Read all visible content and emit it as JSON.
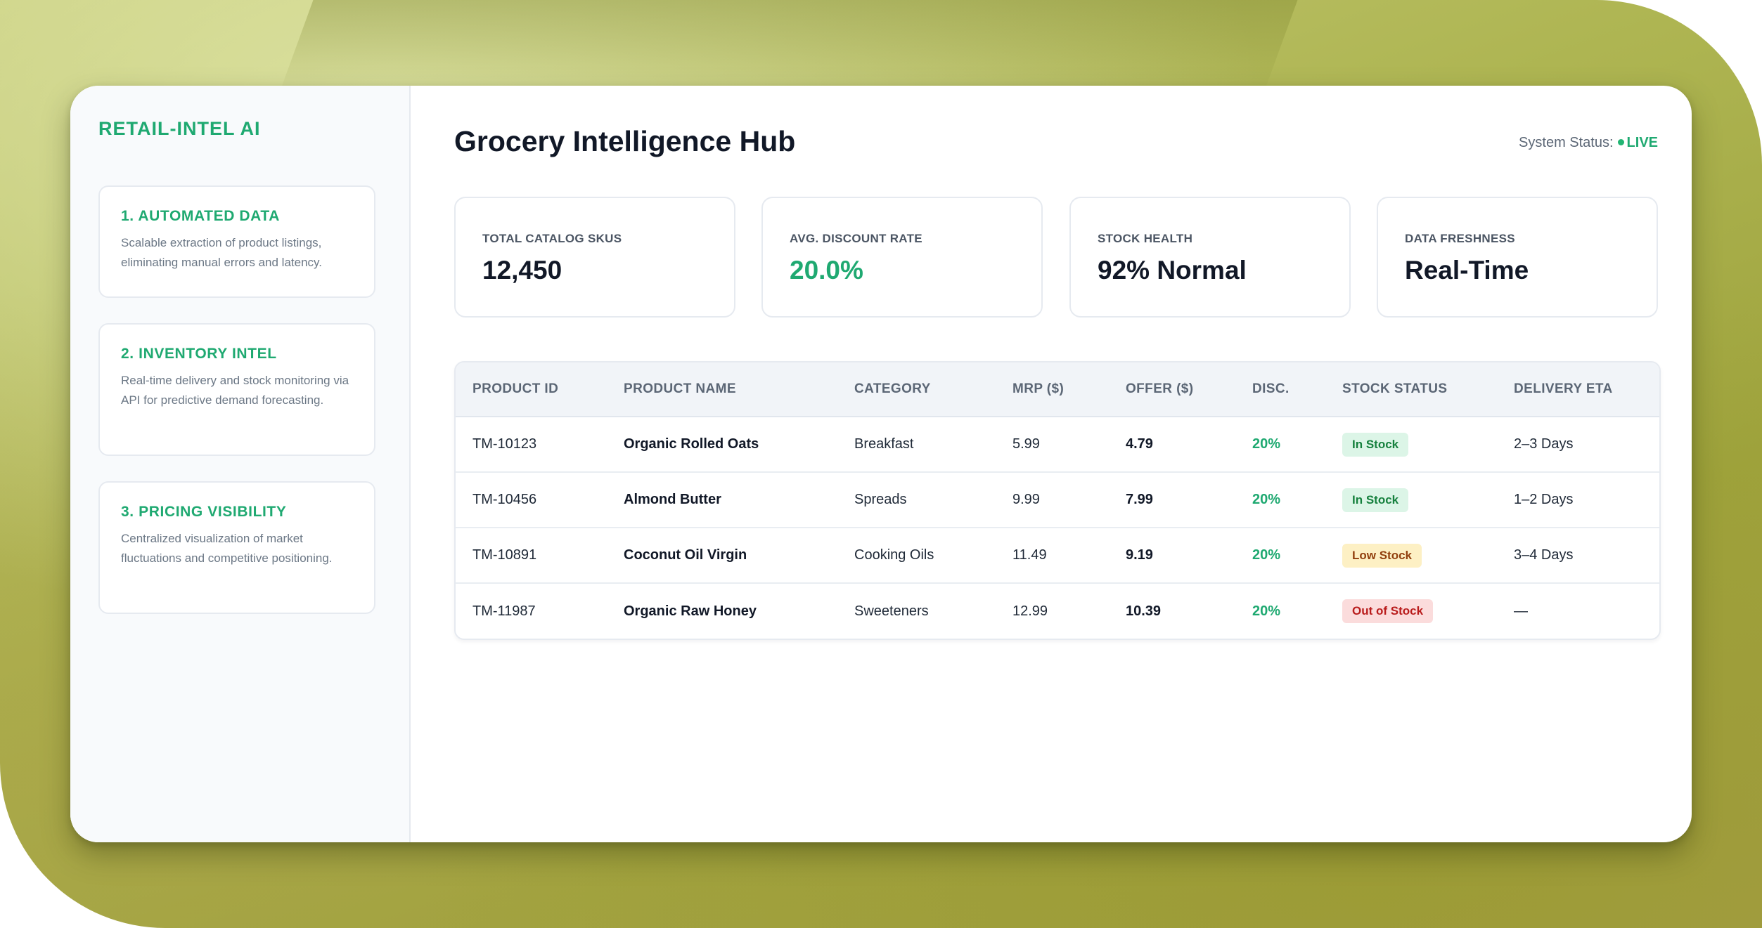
{
  "brand": "RETAIL-INTEL AI",
  "sidebar": {
    "cards": [
      {
        "title": "1. AUTOMATED DATA",
        "description": "Scalable extraction of product listings, eliminating manual errors and latency."
      },
      {
        "title": "2. INVENTORY INTEL",
        "description": "Real-time delivery and stock monitoring via API for predictive demand forecasting."
      },
      {
        "title": "3. PRICING VISIBILITY",
        "description": "Centralized visualization of market fluctuations and competitive positioning."
      }
    ]
  },
  "header": {
    "title": "Grocery Intelligence Hub",
    "status_label": "System Status:",
    "status_value": "LIVE"
  },
  "kpis": [
    {
      "label": "TOTAL CATALOG SKUS",
      "value": "12,450"
    },
    {
      "label": "AVG. DISCOUNT RATE",
      "value": "20.0%"
    },
    {
      "label": "STOCK HEALTH",
      "value": "92% Normal"
    },
    {
      "label": "DATA FRESHNESS",
      "value": "Real-Time"
    }
  ],
  "table": {
    "headers": [
      "PRODUCT ID",
      "PRODUCT NAME",
      "CATEGORY",
      "MRP ($)",
      "OFFER ($)",
      "DISC.",
      "STOCK STATUS",
      "DELIVERY ETA"
    ],
    "rows": [
      {
        "id": "TM-10123",
        "name": "Organic Rolled Oats",
        "category": "Breakfast",
        "mrp": "5.99",
        "offer": "4.79",
        "disc": "20%",
        "stock": "In Stock",
        "eta": "2–3 Days"
      },
      {
        "id": "TM-10456",
        "name": "Almond Butter",
        "category": "Spreads",
        "mrp": "9.99",
        "offer": "7.99",
        "disc": "20%",
        "stock": "In Stock",
        "eta": "1–2 Days"
      },
      {
        "id": "TM-10891",
        "name": "Coconut Oil Virgin",
        "category": "Cooking Oils",
        "mrp": "11.49",
        "offer": "9.19",
        "disc": "20%",
        "stock": "Low Stock",
        "eta": "3–4 Days"
      },
      {
        "id": "TM-11987",
        "name": "Organic Raw Honey",
        "category": "Sweeteners",
        "mrp": "12.99",
        "offer": "10.39",
        "disc": "20%",
        "stock": "Out of Stock",
        "eta": "—"
      }
    ]
  },
  "colors": {
    "accent_green": "#1fa971",
    "in_stock_bg": "#dcf5e7",
    "low_stock_bg": "#fdf0c4",
    "out_of_stock_bg": "#fbdcdc"
  }
}
